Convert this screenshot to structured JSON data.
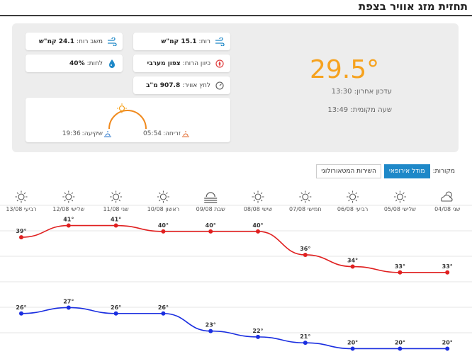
{
  "title": "תחזית מזג אוויר בצפת",
  "current": {
    "temperature": "29.5°",
    "updated_label": "עדכון אחרון:",
    "updated_time": "13:30",
    "local_label": "שעה מקומית:",
    "local_time": "13:49"
  },
  "details": {
    "wind_label": "רוח:",
    "wind_value": "15.1 קמ\"ש",
    "gust_label": "משב רוח:",
    "gust_value": "24.1 קמ\"ש",
    "direction_label": "כיוון הרוח:",
    "direction_value": "צפון מערבי",
    "humidity_label": "לחות:",
    "humidity_value": "40%",
    "pressure_label": "לחץ אוויר:",
    "pressure_value": "907.8 מ\"ב"
  },
  "sun": {
    "sunrise_label": "זריחה:",
    "sunrise_time": "05:54",
    "sunset_label": "שקיעה:",
    "sunset_time": "19:36"
  },
  "sources": {
    "label": "מקורות:",
    "options": [
      "מודל אירופאי",
      "השירות המטאורולוגי"
    ],
    "selected": "מודל אירופאי"
  },
  "chart_data": {
    "type": "line",
    "categories": [
      "רביעי 13/08",
      "שלישי 12/08",
      "שני 11/08",
      "ראשון 10/08",
      "שבת 09/08",
      "שישי 08/08",
      "חמישי 07/08",
      "רביעי 06/08",
      "שלישי 05/08",
      "שני 04/08"
    ],
    "icons": [
      "sun-icon",
      "sun-icon",
      "sun-icon",
      "sun-icon",
      "haze-icon",
      "sun-icon",
      "sun-icon",
      "sun-icon",
      "sun-icon",
      "partly-cloudy-icon"
    ],
    "series": [
      {
        "color": "#e02020",
        "values": [
          39,
          41,
          41,
          40,
          40,
          40,
          36,
          34,
          33,
          33
        ]
      },
      {
        "color": "#1a2ee0",
        "values": [
          26,
          27,
          26,
          26,
          23,
          22,
          21,
          20,
          20,
          20
        ]
      }
    ],
    "value_suffix": "°"
  }
}
